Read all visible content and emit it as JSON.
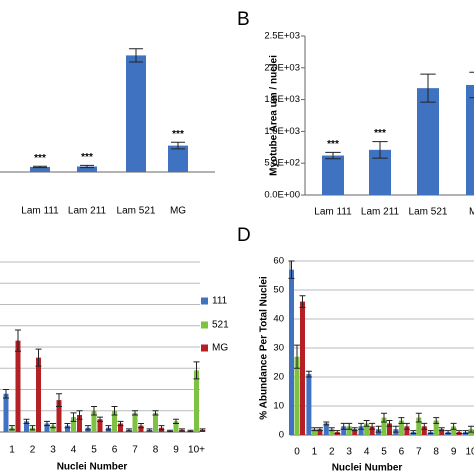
{
  "chart_data": [
    {
      "type": "bar",
      "categories": [
        "Lam 111",
        "Lam 211",
        "Lam 521",
        "MG"
      ],
      "values": [
        0.23,
        0.25,
        5.3,
        1.2
      ],
      "errors": [
        0.03,
        0.05,
        0.3,
        0.15
      ],
      "annotations": [
        "***",
        "***",
        null,
        "***"
      ],
      "color": "#3f72c0",
      "ylim": [
        0,
        6
      ]
    },
    {
      "type": "bar",
      "panel_label": "B",
      "y_label": "Myotube Area um / nuclei",
      "categories": [
        "Lam 111",
        "Lam 211",
        "Lam 521",
        "MG"
      ],
      "values": [
        620,
        710,
        1680,
        1730
      ],
      "errors": [
        50,
        130,
        220,
        200
      ],
      "annotations": [
        "***",
        "***",
        null,
        null
      ],
      "color": "#3f72c0",
      "ylim": [
        0,
        2500
      ],
      "yticks": [
        {
          "value": 0,
          "label": "0.0E+00"
        },
        {
          "value": 500,
          "label": "5.0E+02"
        },
        {
          "value": 1000,
          "label": "1.0E+03"
        },
        {
          "value": 1500,
          "label": "1.5E+03"
        },
        {
          "value": 2000,
          "label": "2.0E+03"
        },
        {
          "value": 2500,
          "label": "2.5E+03"
        }
      ]
    },
    {
      "type": "grouped_bar",
      "x_label": "Nuclei Number",
      "categories": [
        "1",
        "2",
        "3",
        "4",
        "5",
        "6",
        "7",
        "8",
        "9",
        "10+"
      ],
      "series": [
        {
          "name": "111",
          "color": "#3f72c0",
          "values": [
            18,
            5,
            4,
            3,
            2,
            2,
            1,
            1,
            0.5,
            0.5
          ],
          "errors": [
            2,
            1,
            1,
            1,
            1,
            1,
            0.5,
            0.5,
            0.3,
            0.3
          ]
        },
        {
          "name": "521",
          "color": "#7dc242",
          "values": [
            2,
            2,
            3,
            7,
            10,
            10,
            9,
            9,
            5,
            29
          ],
          "errors": [
            1,
            1,
            1,
            2,
            2,
            2,
            1,
            1,
            1,
            4
          ]
        },
        {
          "name": "MG",
          "color": "#b52025",
          "values": [
            43,
            35,
            15,
            8,
            6,
            4,
            3,
            2,
            1,
            1
          ],
          "errors": [
            5,
            4,
            3,
            2,
            1,
            1,
            1,
            1,
            0.5,
            0.5
          ]
        }
      ],
      "ylim": [
        0,
        80
      ],
      "ygrid": [
        0,
        10,
        20,
        30,
        40,
        50,
        60,
        70,
        80
      ]
    },
    {
      "type": "grouped_bar",
      "panel_label": "D",
      "x_label": "Nuclei Number",
      "y_label": "% Abundance Per Total Nuclei",
      "categories": [
        "0",
        "1",
        "2",
        "3",
        "4",
        "5",
        "6",
        "7",
        "8",
        "9",
        "10"
      ],
      "series": [
        {
          "name": "111",
          "color": "#3f72c0",
          "values": [
            57,
            21,
            4,
            3,
            3,
            2,
            2,
            1,
            1,
            1,
            1
          ],
          "errors": [
            3,
            1,
            0.5,
            1,
            1,
            1,
            1,
            0.5,
            0.5,
            0.5,
            0.5
          ]
        },
        {
          "name": "521",
          "color": "#7dc242",
          "values": [
            27,
            2,
            2,
            3,
            4,
            6,
            5,
            6,
            5,
            3,
            2
          ],
          "errors": [
            4,
            0.5,
            0.5,
            1,
            1,
            1.5,
            1,
            1.5,
            1,
            1,
            1
          ]
        },
        {
          "name": "MG",
          "color": "#b52025",
          "values": [
            46,
            2,
            1,
            2,
            3,
            4,
            3,
            3,
            2,
            1,
            1
          ],
          "errors": [
            2,
            0.5,
            0.5,
            0.5,
            1,
            1,
            1,
            1,
            0.5,
            0.5,
            0.5
          ]
        }
      ],
      "ylim": [
        0,
        60
      ],
      "yticks": [
        0,
        10,
        20,
        30,
        40,
        50,
        60
      ]
    }
  ]
}
